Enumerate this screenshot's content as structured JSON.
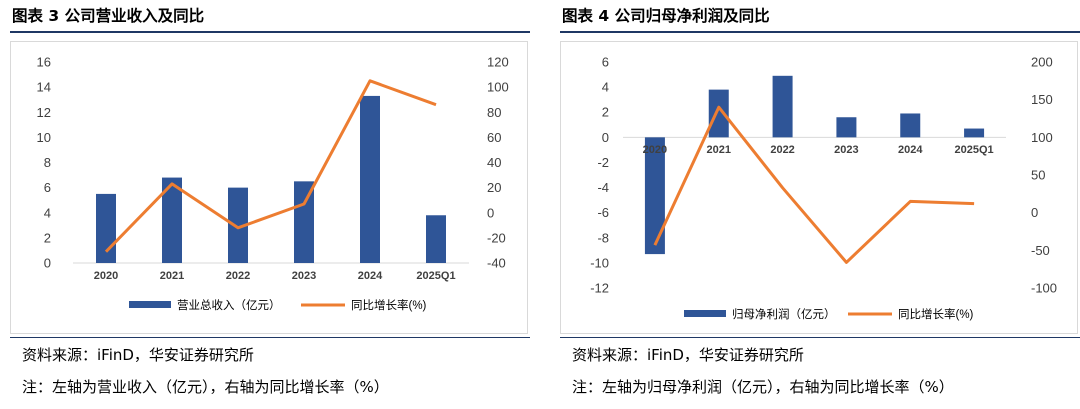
{
  "colors": {
    "bar": "#2f5597",
    "line": "#ed7d31",
    "title_rule": "#1f3864",
    "zero_line": "#d9d9d9",
    "text": "#404040"
  },
  "charts": [
    {
      "fig_title": "图表 3 公司营业收入及同比",
      "source": "资料来源：iFinD，华安证券研究所",
      "note": "注：左轴为营业收入（亿元），右轴为同比增长率（%）",
      "chart_data": {
        "type": "bar",
        "categories": [
          "2020",
          "2021",
          "2022",
          "2023",
          "2024",
          "2025Q1"
        ],
        "series": [
          {
            "name": "营业总收入（亿元）",
            "type": "bar",
            "axis": "left",
            "values": [
              5.5,
              6.8,
              6.0,
              6.5,
              13.3,
              3.8
            ]
          },
          {
            "name": "同比增长率(%)",
            "type": "line",
            "axis": "right",
            "values": [
              -31,
              23,
              -12,
              7,
              105,
              86
            ]
          }
        ],
        "ylim_left": [
          0,
          16
        ],
        "yticks_left": [
          0,
          2,
          4,
          6,
          8,
          10,
          12,
          14,
          16
        ],
        "ylim_right": [
          -40,
          120
        ],
        "yticks_right": [
          -40,
          -20,
          0,
          20,
          40,
          60,
          80,
          100,
          120
        ],
        "legend": [
          "营业总收入（亿元）",
          "同比增长率(%)"
        ],
        "legend_position": "bottom",
        "grid": false
      }
    },
    {
      "fig_title": "图表 4 公司归母净利润及同比",
      "source": "资料来源：iFinD，华安证券研究所",
      "note": "注：左轴为归母净利润（亿元），右轴为同比增长率（%）",
      "chart_data": {
        "type": "bar",
        "categories": [
          "2020",
          "2021",
          "2022",
          "2023",
          "2024",
          "2025Q1"
        ],
        "series": [
          {
            "name": "归母净利润（亿元）",
            "type": "bar",
            "axis": "left",
            "values": [
              -9.3,
              3.8,
              4.9,
              1.6,
              1.9,
              0.7
            ]
          },
          {
            "name": "同比增长率(%)",
            "type": "line",
            "axis": "right",
            "values": [
              -43,
              140,
              33,
              -66,
              15,
              12
            ]
          }
        ],
        "ylim_left": [
          -12,
          6
        ],
        "yticks_left": [
          -12,
          -10,
          -8,
          -6,
          -4,
          -2,
          0,
          2,
          4,
          6
        ],
        "ylim_right": [
          -100,
          200
        ],
        "yticks_right": [
          -100,
          -50,
          0,
          50,
          100,
          150,
          200
        ],
        "legend": [
          "归母净利润（亿元）",
          "同比增长率(%)"
        ],
        "legend_position": "bottom",
        "grid": false
      }
    }
  ]
}
